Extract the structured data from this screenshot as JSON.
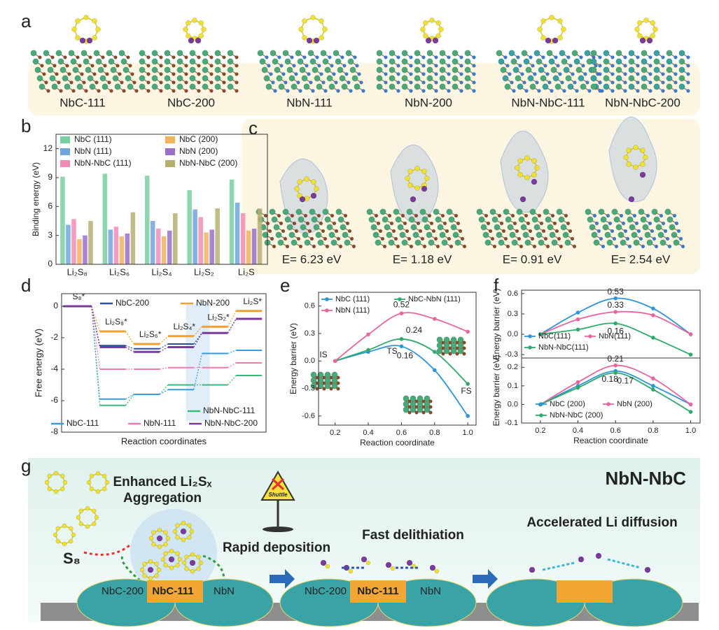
{
  "panel_labels": [
    "a",
    "b",
    "c",
    "d",
    "e",
    "f",
    "g"
  ],
  "structures": [
    "NbC-111",
    "NbC-200",
    "NbN-111",
    "NbN-200",
    "NbN-NbC-111",
    "NbN-NbC-200"
  ],
  "adsorption_energies": [
    "E= 6.23 eV",
    "E= 1.18 eV",
    "E= 0.91 eV",
    "E= 2.54 eV"
  ],
  "chart_data": [
    {
      "type": "bar",
      "ylabel": "Binding energy (eV)",
      "categories": [
        "Li₂S₈",
        "Li₂S₆",
        "Li₂S₄",
        "Li₂S₂",
        "Li₂S"
      ],
      "series": [
        {
          "name": "NbC (111)",
          "color": "#79cfa0",
          "values": [
            9.1,
            9.4,
            9.2,
            7.7,
            8.8
          ]
        },
        {
          "name": "NbN (111)",
          "color": "#6fa6de",
          "values": [
            4.1,
            3.6,
            4.5,
            5.7,
            6.4
          ]
        },
        {
          "name": "NbN-NbC (111)",
          "color": "#f08cb6",
          "values": [
            4.7,
            3.9,
            3.7,
            4.9,
            5.3
          ]
        },
        {
          "name": "NbC (200)",
          "color": "#f4b25c",
          "values": [
            2.6,
            2.9,
            2.9,
            3.3,
            3.5
          ]
        },
        {
          "name": "NbN (200)",
          "color": "#9b6fca",
          "values": [
            3.0,
            3.2,
            3.5,
            3.6,
            3.7
          ]
        },
        {
          "name": "NbN-NbC (200)",
          "color": "#b7ae72",
          "values": [
            4.5,
            5.4,
            5.3,
            5.8,
            5.8
          ]
        }
      ],
      "ylim": [
        0,
        13.5
      ],
      "yticks": [
        0,
        3,
        6,
        9,
        12
      ]
    },
    {
      "type": "step",
      "xlabel": "Reaction coordinates",
      "ylabel": "Free energy (eV)",
      "categories": [
        "S₈*",
        "Li₂S₈*",
        "Li₂S₆*",
        "Li₂S₄*",
        "Li₂S₂*",
        "Li₂S*"
      ],
      "category_colors": [
        "#222",
        "#222",
        "#222",
        "#e03030",
        "#e03030",
        "#222"
      ],
      "series": [
        {
          "name": "NbC-200",
          "color": "#2b4fa0",
          "values": [
            0,
            -2.5,
            -2.7,
            -2.4,
            -1.7,
            -0.8
          ]
        },
        {
          "name": "NbN-200",
          "color": "#f0a030",
          "values": [
            0,
            -1.6,
            -2.4,
            -1.9,
            -1.3,
            -0.3
          ]
        },
        {
          "name": "NbN-NbC-111",
          "color": "#3cb878",
          "values": [
            0,
            -6.3,
            -5.6,
            -5.0,
            -5.0,
            -4.4
          ]
        },
        {
          "name": "NbC-111",
          "color": "#3a9ad9",
          "values": [
            0,
            -5.9,
            -5.6,
            -5.3,
            -3.0,
            -2.8
          ]
        },
        {
          "name": "NbN-111",
          "color": "#f07aae",
          "values": [
            0,
            -4.0,
            -4.0,
            -3.9,
            -3.9,
            -3.6
          ]
        },
        {
          "name": "NbN-NbC-200",
          "color": "#7a3a9a",
          "values": [
            0,
            -2.6,
            -2.9,
            -2.6,
            -1.7,
            -0.8
          ]
        }
      ],
      "ylim": [
        -8,
        0.8
      ],
      "yticks": [
        0,
        -2,
        -4,
        -6,
        -8
      ]
    },
    {
      "type": "line",
      "xlabel": "Reaction coordinate",
      "ylabel": "Energy barrier (eV)",
      "annotations": [
        "IS",
        "TS",
        "FS"
      ],
      "x": [
        0.2,
        0.4,
        0.6,
        0.8,
        1.0
      ],
      "series": [
        {
          "name": "NbC (111)",
          "color": "#2f95d6",
          "values": [
            0,
            0.1,
            0.16,
            -0.1,
            -0.6
          ]
        },
        {
          "name": "NbC-NbN (111)",
          "color": "#2eaa6a",
          "values": [
            0,
            0.12,
            0.24,
            0.1,
            -0.25
          ]
        },
        {
          "name": "NbN (111)",
          "color": "#e8669e",
          "values": [
            0,
            0.29,
            0.52,
            0.46,
            0.32
          ]
        }
      ],
      "xlim": [
        0.1,
        1.05
      ],
      "xticks": [
        0.2,
        0.4,
        0.6,
        0.8,
        {
          "value": 1.0,
          "label": "1.0"
        }
      ],
      "ylim": [
        -0.7,
        0.75
      ],
      "yticks": [
        -0.6,
        -0.3,
        {
          "value": 0,
          "label": "0.0"
        },
        0.3,
        0.6
      ]
    },
    {
      "type": "line",
      "ylabel": "Energy barrier (eV)",
      "x": [
        0.2,
        0.4,
        0.6,
        0.8,
        1.0
      ],
      "series": [
        {
          "name": "NbC(111)",
          "color": "#2f95d6",
          "values": [
            0,
            0.32,
            0.53,
            0.38,
            0
          ]
        },
        {
          "name": "NbN(111)",
          "color": "#e8669e",
          "values": [
            0,
            0.22,
            0.33,
            0.28,
            0
          ]
        },
        {
          "name": "NbN-NbC(111)",
          "color": "#2eaa6a",
          "values": [
            0,
            0.07,
            0.16,
            -0.05,
            -0.3
          ]
        }
      ],
      "xlim": [
        0.1,
        1.05
      ],
      "ylim": [
        -0.35,
        0.65
      ],
      "yticks": [
        -0.3,
        {
          "value": 0,
          "label": "0.0"
        },
        0.3,
        0.6
      ]
    },
    {
      "type": "line",
      "xlabel": "Reaction coordinate",
      "ylabel": "Energy barrier (eV)",
      "x": [
        0.2,
        0.4,
        0.6,
        0.8,
        1.0
      ],
      "series": [
        {
          "name": "NbC (200)",
          "color": "#2f95d6",
          "values": [
            0,
            0.1,
            0.18,
            0.1,
            0
          ]
        },
        {
          "name": "NbN (200)",
          "color": "#e8669e",
          "values": [
            0,
            0.12,
            0.21,
            0.14,
            0
          ]
        },
        {
          "name": "NbN-NbC (200)",
          "color": "#2eaa6a",
          "values": [
            0,
            0.09,
            0.17,
            0.08,
            -0.04
          ]
        }
      ],
      "xlim": [
        0.1,
        1.05
      ],
      "xticks": [
        0.2,
        0.4,
        0.6,
        0.8,
        {
          "value": 1.0,
          "label": "1.0"
        }
      ],
      "ylim": [
        -0.1,
        0.25
      ],
      "yticks": [
        -0.1,
        {
          "value": 0,
          "label": "0.0"
        },
        0.1,
        0.2
      ]
    }
  ],
  "scheme": {
    "title": "NbN-NbC",
    "aggregation": [
      "Enhanced Li₂Sₓ",
      "Aggregation"
    ],
    "sulfur": "S₈",
    "shuttle": "Shuttle",
    "steps": [
      "Rapid deposition",
      "Fast delithiation",
      "Accelerated Li diffusion"
    ],
    "substrates": [
      "NbC-200",
      "NbC-111",
      "NbN",
      "NbC-200",
      "NbC-111",
      "NbN"
    ]
  }
}
